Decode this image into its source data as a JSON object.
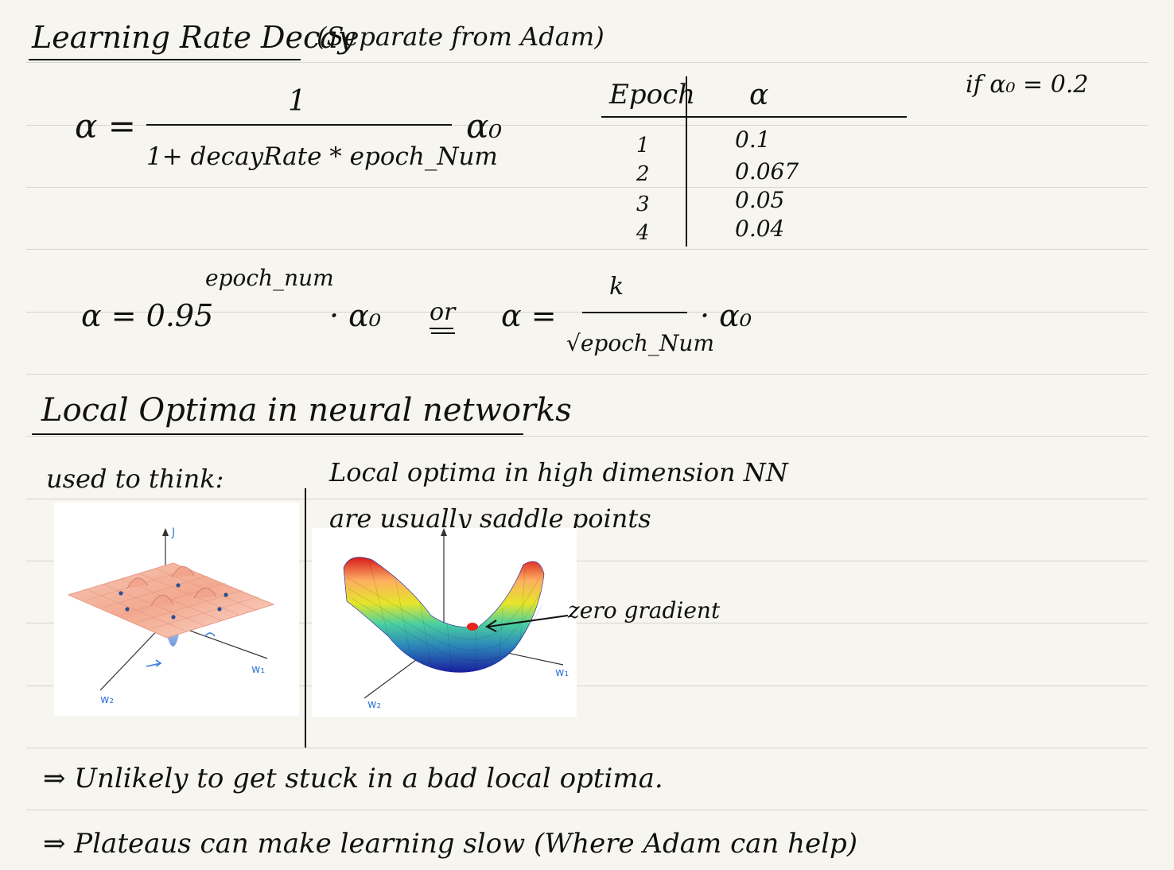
{
  "section1": {
    "title": "Learning Rate Decay",
    "subtitle": "(Separate from Adam)",
    "formula1": {
      "lhs": "α =",
      "numerator": "1",
      "denominator": "1+ decayRate * epoch_Num",
      "factor": "α₀"
    },
    "table": {
      "col_epoch": "Epoch",
      "col_alpha": "α",
      "rows": [
        {
          "epoch": "1",
          "alpha": "0.1"
        },
        {
          "epoch": "2",
          "alpha": "0.067"
        },
        {
          "epoch": "3",
          "alpha": "0.05"
        },
        {
          "epoch": "4",
          "alpha": "0.04"
        }
      ],
      "note": "if α₀ = 0.2"
    },
    "formula2": {
      "lhs": "α = 0.95",
      "exponent": "epoch_num",
      "times": "· α₀",
      "or": "or",
      "lhs2": "α =",
      "numerator": "k",
      "denominator": "√epoch_Num",
      "times2": "· α₀"
    }
  },
  "section2": {
    "title": "Local Optima in neural networks",
    "used_to_think": "used to think:",
    "insight_line1": "Local optima in high dimension NN",
    "insight_line2": "are usually saddle points",
    "zero_gradient": "zero gradient",
    "plot1_labels": {
      "z": "J",
      "x": "w₁",
      "y": "w₂"
    },
    "plot2_labels": {
      "x": "w₁",
      "y": "w₂"
    },
    "conclusion1": "⇒ Unlikely to get stuck in a bad local optima.",
    "conclusion2": "⇒ Plateaus can make learning slow (Where Adam can help)"
  },
  "colors": {
    "ink": "#111111",
    "paper": "#f6f5ef",
    "rule": "#d6d4cc",
    "annotation_blue": "#3a7bd5",
    "saddle_point": "#e8231c"
  }
}
